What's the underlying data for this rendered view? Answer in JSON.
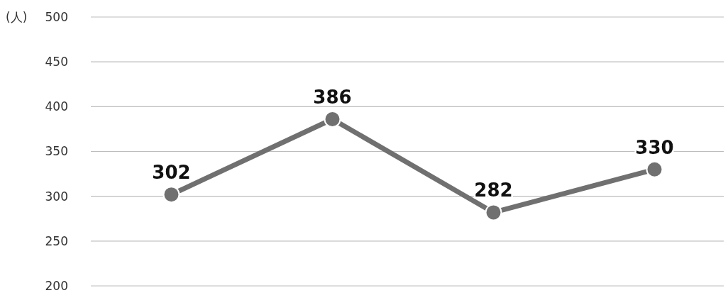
{
  "chart_data": {
    "type": "line",
    "ylabel": "(人)",
    "categories": [
      null,
      null,
      null,
      null
    ],
    "series": [
      {
        "color": "#707070",
        "values": [
          302,
          386,
          282,
          330
        ]
      }
    ],
    "ylim": [
      200,
      500
    ],
    "yticks": [
      200,
      250,
      300,
      350,
      400,
      450,
      500
    ],
    "grid": "y",
    "marker": "circle",
    "line_style": "solid",
    "data_labels": true,
    "tick_labels": "y"
  }
}
